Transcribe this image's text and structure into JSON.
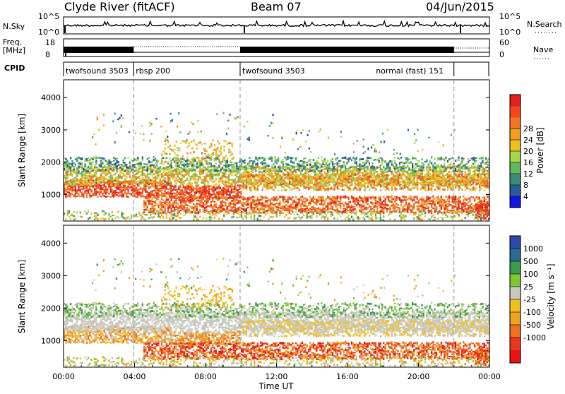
{
  "header": {
    "station": "Clyde River (fitACF)",
    "beam": "Beam 07",
    "date": "04/Jun/2015"
  },
  "strips": {
    "nsky_label": "N.Sky",
    "nsky_ticks": [
      "10^5",
      "10^0"
    ],
    "nsearch_label": "N.Search",
    "nsearch_ticks": [
      "10^5",
      "10^0"
    ],
    "freq_label_line1": "Freq.",
    "freq_label_line2": "[MHz]",
    "freq_ticks": [
      "18",
      "8"
    ],
    "nave_label": "Nave",
    "nave_ticks": [
      "60",
      "0"
    ],
    "cpid_label": "CPID"
  },
  "cpid_segments": [
    {
      "label": "twofsound 3503",
      "start": 0.0,
      "end": 3.95
    },
    {
      "label": "rbsp 200",
      "start": 3.95,
      "end": 9.95
    },
    {
      "label": "twofsound 3503",
      "start": 9.95,
      "end": 22.0
    },
    {
      "label": "normal (fast) 151",
      "start": 22.0,
      "end": 24.0,
      "label_anchor": 17.6
    }
  ],
  "chart_data": [
    {
      "type": "heatmap",
      "name": "power",
      "ylabel": "Slant Range [km]",
      "ylim": [
        180,
        4550
      ],
      "yticks": [
        "1000",
        "2000",
        "3000",
        "4000"
      ],
      "yticks_values": [
        1000,
        2000,
        3000,
        4000
      ],
      "xlim_hours": [
        0,
        24
      ],
      "colorbar_label": "Power [dB]",
      "colorbar_ticks": [
        "4",
        "8",
        "12",
        "16",
        "20",
        "24",
        "28"
      ],
      "colorbar_colors": [
        "#1414e6",
        "#2a5aa0",
        "#3c8c78",
        "#5fb85a",
        "#a8d84a",
        "#f0c020",
        "#f0a020",
        "#f07820",
        "#f04a1e",
        "#e61e1e"
      ]
    },
    {
      "type": "heatmap",
      "name": "velocity",
      "ylabel": "Slant Range [km]",
      "ylim": [
        180,
        4550
      ],
      "yticks": [
        "1000",
        "2000",
        "3000",
        "4000"
      ],
      "yticks_values": [
        1000,
        2000,
        3000,
        4000
      ],
      "xlim_hours": [
        0,
        24
      ],
      "xlabel": "Time UT",
      "xticks": [
        "00:00",
        "04:00",
        "08:00",
        "12:00",
        "16:00",
        "20:00",
        "00:00"
      ],
      "xticks_values": [
        0,
        4,
        8,
        12,
        16,
        20,
        24
      ],
      "colorbar_label": "Velocity [m s⁻¹]",
      "colorbar_ticks": [
        "1000",
        "500",
        "100",
        "25",
        "-25",
        "-100",
        "-500",
        "-1000"
      ],
      "colorbar_colors": [
        "#2a4ab0",
        "#2a6a90",
        "#3c9a4a",
        "#7ac832",
        "#c8c8c0",
        "#f0c020",
        "#f0a020",
        "#f07020",
        "#e83a1a",
        "#e61414"
      ]
    }
  ],
  "colors": {
    "ground_scatter": "#c8c8c0",
    "frame": "#000000",
    "dash_lines": "#999999"
  }
}
